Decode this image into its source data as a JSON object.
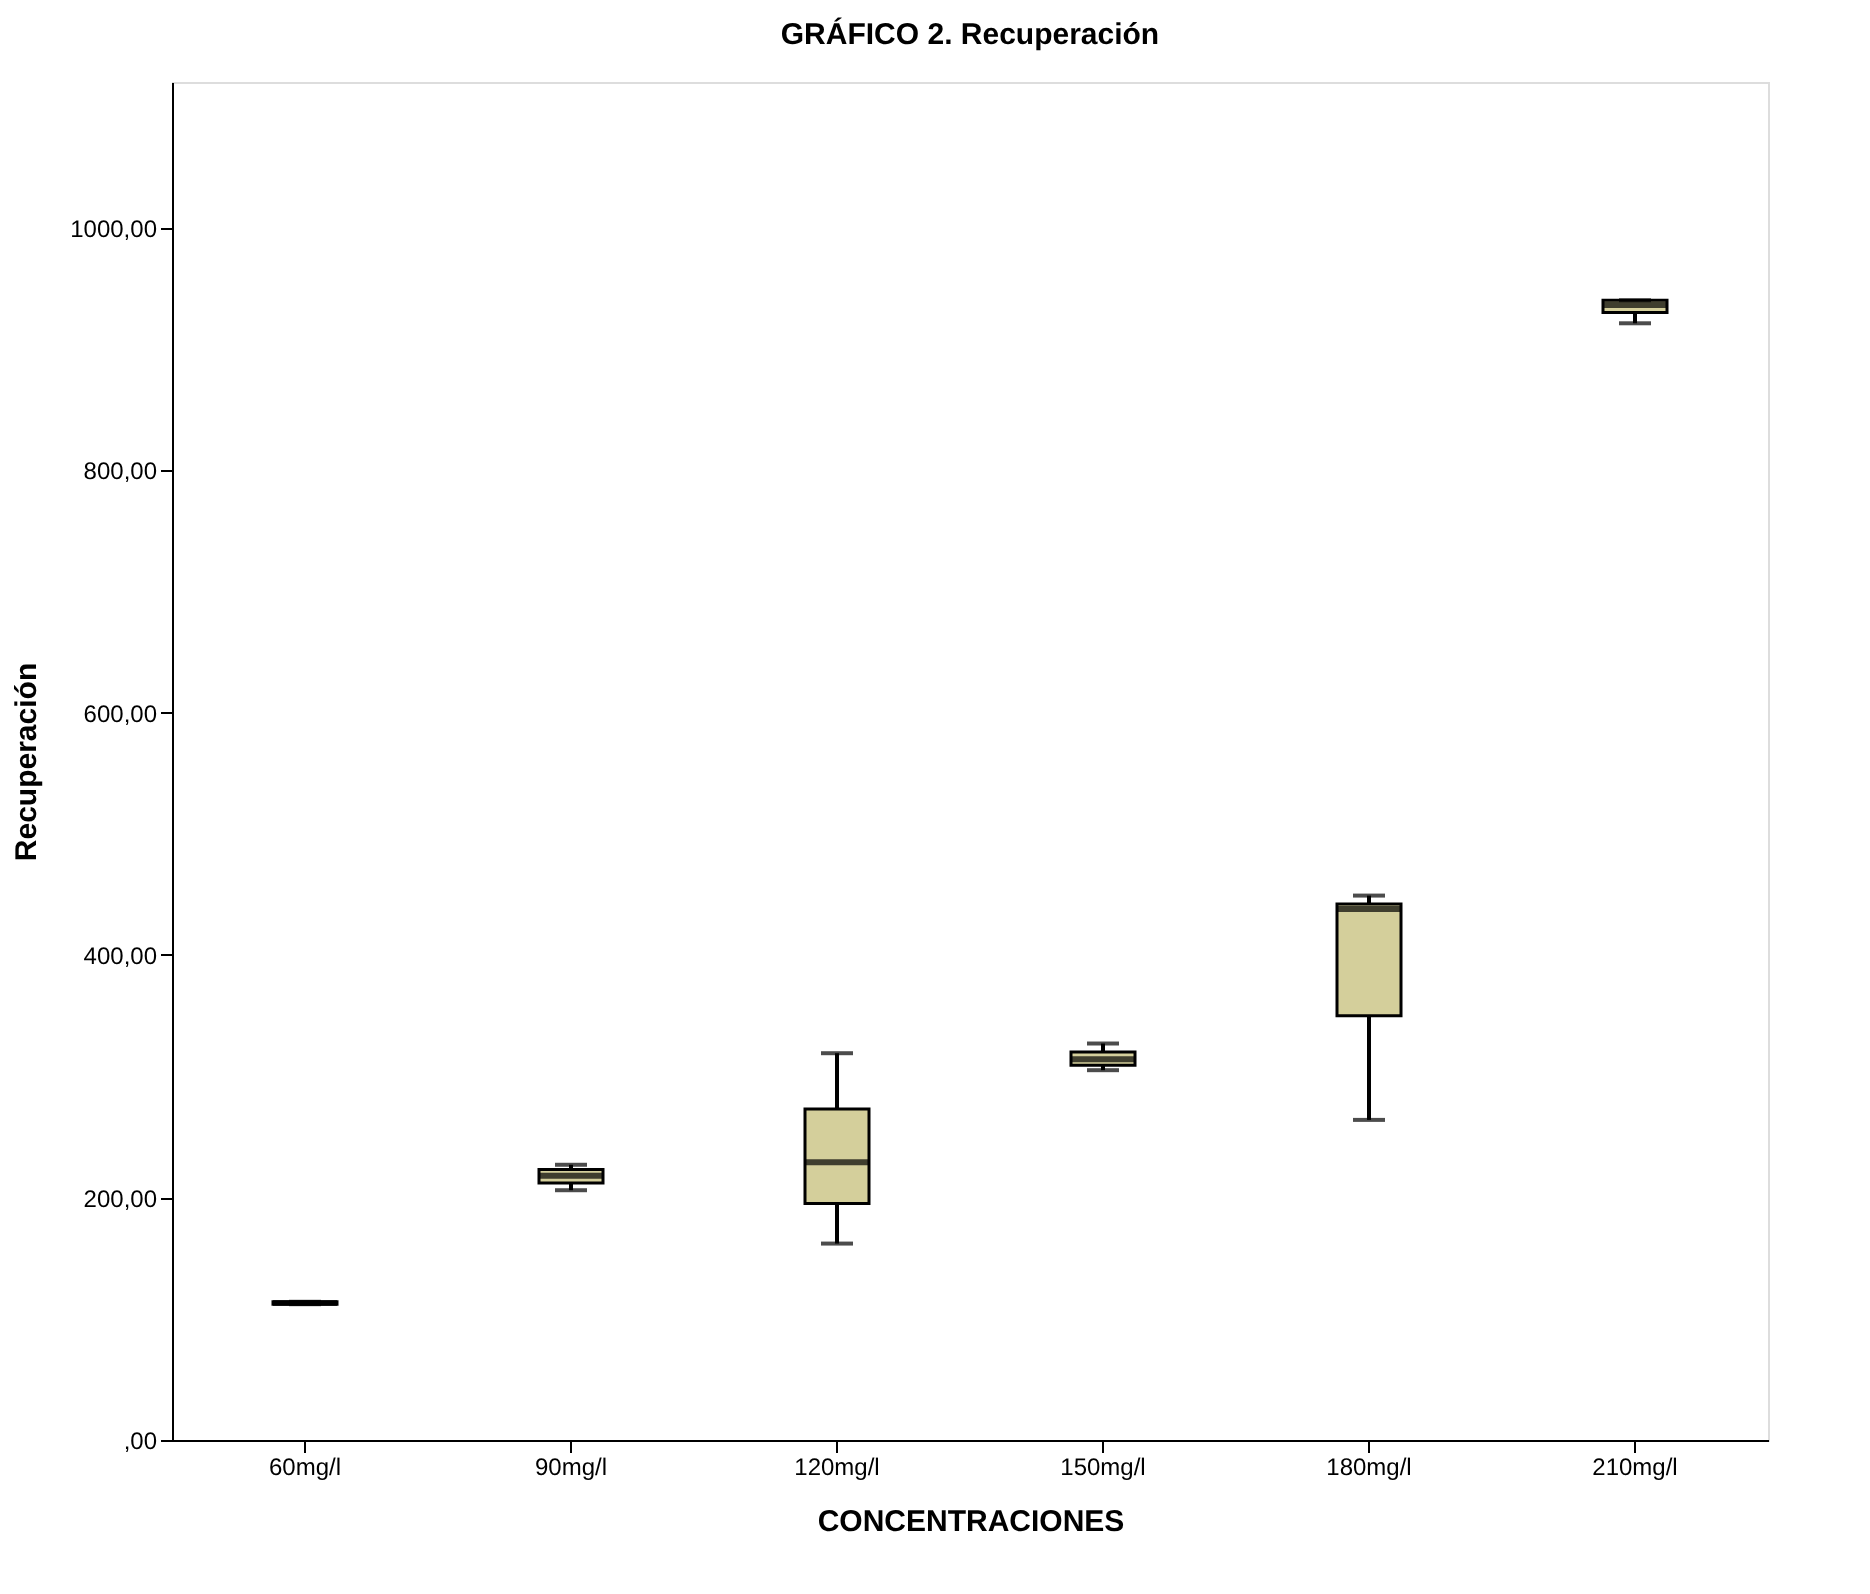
{
  "chart_data": {
    "type": "box",
    "title": "GRÁFICO  2. Recuperación",
    "xlabel": "CONCENTRACIONES",
    "ylabel": "Recuperación",
    "categories": [
      "60mg/l",
      "90mg/l",
      "120mg/l",
      "150mg/l",
      "180mg/l",
      "210mg/l"
    ],
    "boxes": [
      {
        "low": 112,
        "q1": 112,
        "median": 113,
        "q3": 114,
        "high": 114
      },
      {
        "low": 206,
        "q1": 212,
        "median": 218,
        "q3": 223,
        "high": 227
      },
      {
        "low": 162,
        "q1": 195,
        "median": 229,
        "q3": 273,
        "high": 319
      },
      {
        "low": 305,
        "q1": 309,
        "median": 314,
        "q3": 320,
        "high": 327
      },
      {
        "low": 264,
        "q1": 350,
        "median": 438,
        "q3": 442,
        "high": 449
      },
      {
        "low": 921,
        "q1": 930,
        "median": 936,
        "q3": 940,
        "high": 940
      }
    ],
    "color": "#d4cf9b",
    "ylim": [
      0,
      1120
    ],
    "yticks": [
      {
        "value": 0,
        "label": ",00"
      },
      {
        "value": 200,
        "label": "200,00"
      },
      {
        "value": 400,
        "label": "400,00"
      },
      {
        "value": 600,
        "label": "600,00"
      },
      {
        "value": 800,
        "label": "800,00"
      },
      {
        "value": 1000,
        "label": "1000,00"
      }
    ],
    "grid": false
  }
}
